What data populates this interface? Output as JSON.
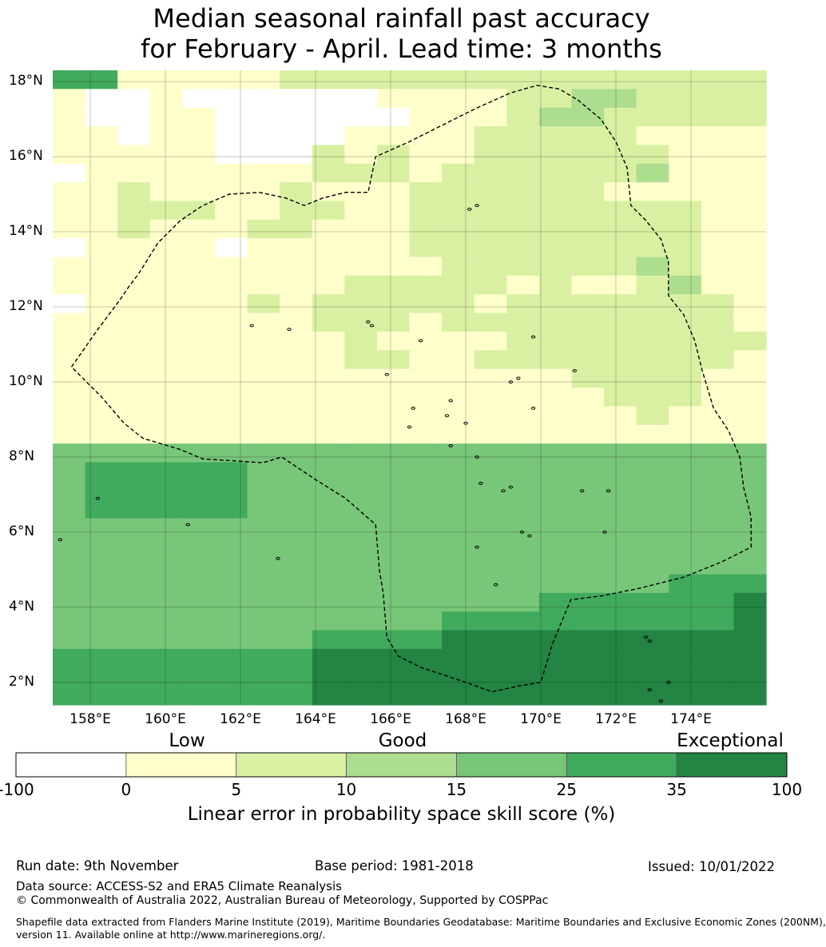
{
  "title": {
    "line1": "Median seasonal rainfall past accuracy",
    "line2": "for February - April. Lead time: 3 months"
  },
  "map": {
    "lon_range": [
      157,
      176
    ],
    "lat_range": [
      1.4,
      18.3
    ],
    "grid_res_deg": 0.83,
    "lat_labels": [
      {
        "lat": 18,
        "label": "18°N"
      },
      {
        "lat": 16,
        "label": "16°N"
      },
      {
        "lat": 14,
        "label": "14°N"
      },
      {
        "lat": 12,
        "label": "12°N"
      },
      {
        "lat": 10,
        "label": "10°N"
      },
      {
        "lat": 8,
        "label": "8°N"
      },
      {
        "lat": 6,
        "label": "6°N"
      },
      {
        "lat": 4,
        "label": "4°N"
      },
      {
        "lat": 2,
        "label": "2°N"
      }
    ],
    "lon_labels": [
      {
        "lon": 158,
        "label": "158°E"
      },
      {
        "lon": 160,
        "label": "160°E"
      },
      {
        "lon": 162,
        "label": "162°E"
      },
      {
        "lon": 164,
        "label": "164°E"
      },
      {
        "lon": 166,
        "label": "166°E"
      },
      {
        "lon": 168,
        "label": "168°E"
      },
      {
        "lon": 170,
        "label": "170°E"
      },
      {
        "lon": 172,
        "label": "172°E"
      },
      {
        "lon": 174,
        "label": "174°E"
      }
    ],
    "skill_grid_rows_north_to_south": [
      "5511111222222222222222",
      "1001000000111122332222",
      "1001100000011123322222",
      "1101100001111222221111",
      "1111100021211222222111",
      "0111111122212222223111",
      "1121111211122222211111",
      "1122211221122222222211",
      "1121112211122222222211",
      "0111101111122222222211",
      "1111111111112222223211",
      "1111111112222212112311",
      "0111112122222122222221",
      "1111111122212222222221",
      "1111111112111122222222",
      "1111111112211222222221",
      "1111111111111111222211",
      "1111111111111111122211",
      "1111111111111111112111",
      "1111111111111111111111",
      "4444444444444444444444",
      "4555554444444444444444",
      "4555554444444444444444",
      "4555554444444444444444",
      "4444444444444444444444",
      "4444444444444444444444",
      "4444444444444444444444",
      "4444444444444444444555",
      "4444444444444445555556",
      "4444444444445555555556",
      "4444444455556666666666",
      "5555555566666666666666",
      "5555555566666666666666",
      "5555555566666666666666"
    ],
    "eez_boundary": [
      [
        157.5,
        10.4
      ],
      [
        158.2,
        11.4
      ],
      [
        158.8,
        12.2
      ],
      [
        159.0,
        12.5
      ],
      [
        159.3,
        12.9
      ],
      [
        159.8,
        13.7
      ],
      [
        160.4,
        14.3
      ],
      [
        161.0,
        14.7
      ],
      [
        161.7,
        15.0
      ],
      [
        162.5,
        15.05
      ],
      [
        163.2,
        14.9
      ],
      [
        163.7,
        14.7
      ],
      [
        164.2,
        14.9
      ],
      [
        164.8,
        15.05
      ],
      [
        165.4,
        15.05
      ],
      [
        165.6,
        16.0
      ],
      [
        166.5,
        16.4
      ],
      [
        167.4,
        16.85
      ],
      [
        168.3,
        17.3
      ],
      [
        169.2,
        17.7
      ],
      [
        169.9,
        17.9
      ],
      [
        170.5,
        17.8
      ],
      [
        171.0,
        17.5
      ],
      [
        171.6,
        17.0
      ],
      [
        172.0,
        16.4
      ],
      [
        172.3,
        15.7
      ],
      [
        172.4,
        14.7
      ],
      [
        172.8,
        14.3
      ],
      [
        173.2,
        13.8
      ],
      [
        173.4,
        13.2
      ],
      [
        173.4,
        12.3
      ],
      [
        173.8,
        11.8
      ],
      [
        174.1,
        11.1
      ],
      [
        174.3,
        10.3
      ],
      [
        174.6,
        9.3
      ],
      [
        175.0,
        8.7
      ],
      [
        175.3,
        8.0
      ],
      [
        175.4,
        7.2
      ],
      [
        175.6,
        6.4
      ],
      [
        175.6,
        5.6
      ],
      [
        174.8,
        5.2
      ],
      [
        173.8,
        4.8
      ],
      [
        172.6,
        4.5
      ],
      [
        171.6,
        4.3
      ],
      [
        170.8,
        4.2
      ],
      [
        170.3,
        3.0
      ],
      [
        170.0,
        2.0
      ],
      [
        169.4,
        1.9
      ],
      [
        168.7,
        1.75
      ],
      [
        168.0,
        2.0
      ],
      [
        166.8,
        2.4
      ],
      [
        166.2,
        2.7
      ],
      [
        165.9,
        3.2
      ],
      [
        165.8,
        4.4
      ],
      [
        165.7,
        5.0
      ],
      [
        165.6,
        6.2
      ],
      [
        164.8,
        6.9
      ],
      [
        164.0,
        7.4
      ],
      [
        163.1,
        8.0
      ],
      [
        162.6,
        7.85
      ],
      [
        161.8,
        7.9
      ],
      [
        161.0,
        7.95
      ],
      [
        160.4,
        8.2
      ],
      [
        159.4,
        8.5
      ],
      [
        158.9,
        8.9
      ],
      [
        158.3,
        9.6
      ],
      [
        157.9,
        10.0
      ],
      [
        157.5,
        10.4
      ]
    ],
    "islands": [
      [
        158.2,
        6.9
      ],
      [
        160.6,
        6.2
      ],
      [
        157.2,
        5.8
      ],
      [
        163.0,
        5.3
      ],
      [
        162.3,
        11.5
      ],
      [
        163.3,
        11.4
      ],
      [
        165.4,
        11.6
      ],
      [
        165.5,
        11.5
      ],
      [
        166.8,
        11.1
      ],
      [
        165.9,
        10.2
      ],
      [
        167.6,
        9.5
      ],
      [
        166.6,
        9.3
      ],
      [
        167.5,
        9.1
      ],
      [
        168.0,
        8.9
      ],
      [
        166.5,
        8.8
      ],
      [
        167.6,
        8.3
      ],
      [
        168.3,
        8.0
      ],
      [
        168.4,
        7.3
      ],
      [
        169.0,
        7.1
      ],
      [
        169.2,
        7.2
      ],
      [
        171.1,
        7.1
      ],
      [
        171.8,
        7.1
      ],
      [
        171.7,
        6.0
      ],
      [
        168.3,
        5.6
      ],
      [
        169.5,
        6.0
      ],
      [
        169.7,
        5.9
      ],
      [
        168.8,
        4.6
      ],
      [
        169.8,
        9.3
      ],
      [
        169.2,
        10.0
      ],
      [
        169.4,
        10.1
      ],
      [
        169.8,
        11.2
      ],
      [
        170.9,
        10.3
      ],
      [
        172.8,
        3.2
      ],
      [
        172.9,
        3.1
      ],
      [
        172.9,
        1.8
      ],
      [
        173.2,
        1.5
      ],
      [
        173.4,
        2.0
      ],
      [
        168.1,
        14.6
      ],
      [
        168.3,
        14.7
      ]
    ]
  },
  "legend": {
    "categories": [
      "Low",
      "Good",
      "Exceptional"
    ],
    "colors": [
      "#ffffff",
      "#ffffcc",
      "#d9f0a3",
      "#addd8e",
      "#78c679",
      "#41ab5d",
      "#238443"
    ],
    "tick_labels": [
      "-100",
      "0",
      "5",
      "10",
      "15",
      "25",
      "35",
      "100"
    ],
    "title": "Linear error in probability space skill score (%)"
  },
  "footer": {
    "run_date": "Run date: 9th November",
    "base_period": "Base period: 1981-2018",
    "issued": "Issued: 10/01/2022",
    "data_source": "Data source: ACCESS-S2 and ERA5 Climate Reanalysis",
    "copyright": "© Commonwealth of Australia 2022, Australian Bureau of Meteorology, Supported by COSPPac",
    "shapefile_line1": "Shapefile data extracted from Flanders Marine Institute (2019), Maritime Boundaries Geodatabase: Maritime Boundaries and Exclusive Economic Zones (200NM),",
    "shapefile_line2": "version 11. Available online at http://www.marineregions.org/."
  }
}
